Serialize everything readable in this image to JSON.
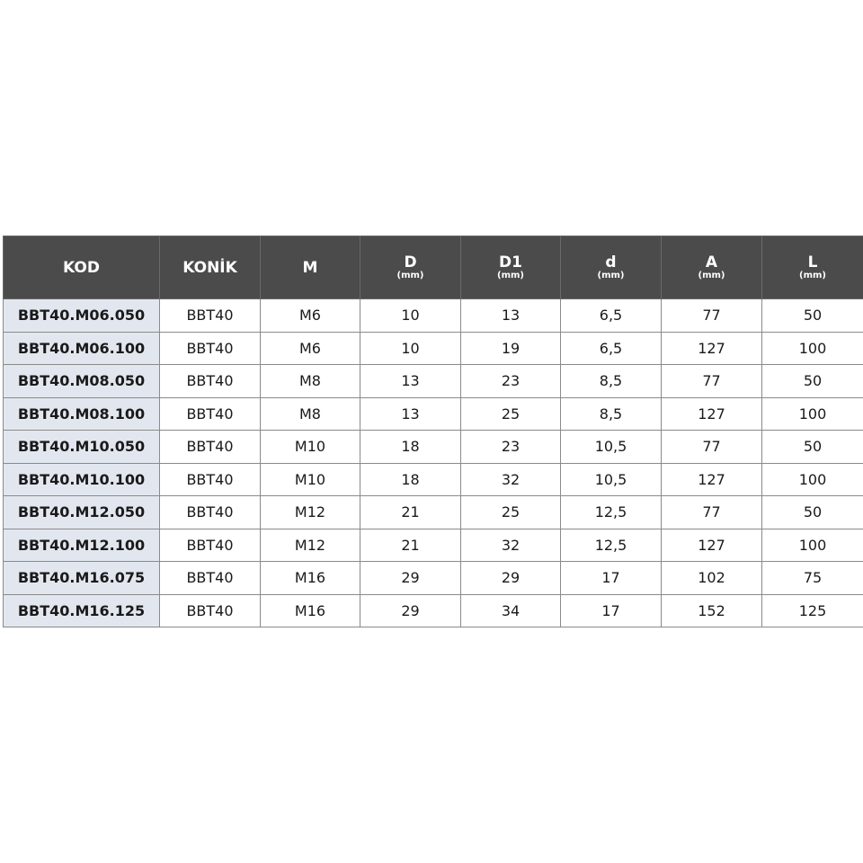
{
  "table": {
    "headers": [
      {
        "label": "KOD",
        "unit": ""
      },
      {
        "label": "KONİK",
        "unit": ""
      },
      {
        "label": "M",
        "unit": ""
      },
      {
        "label": "D",
        "unit": "(mm)"
      },
      {
        "label": "D1",
        "unit": "(mm)"
      },
      {
        "label": "d",
        "unit": "(mm)"
      },
      {
        "label": "A",
        "unit": "(mm)"
      },
      {
        "label": "L",
        "unit": "(mm)"
      }
    ],
    "rows": [
      [
        "BBT40.M06.050",
        "BBT40",
        "M6",
        "10",
        "13",
        "6,5",
        "77",
        "50"
      ],
      [
        "BBT40.M06.100",
        "BBT40",
        "M6",
        "10",
        "19",
        "6,5",
        "127",
        "100"
      ],
      [
        "BBT40.M08.050",
        "BBT40",
        "M8",
        "13",
        "23",
        "8,5",
        "77",
        "50"
      ],
      [
        "BBT40.M08.100",
        "BBT40",
        "M8",
        "13",
        "25",
        "8,5",
        "127",
        "100"
      ],
      [
        "BBT40.M10.050",
        "BBT40",
        "M10",
        "18",
        "23",
        "10,5",
        "77",
        "50"
      ],
      [
        "BBT40.M10.100",
        "BBT40",
        "M10",
        "18",
        "32",
        "10,5",
        "127",
        "100"
      ],
      [
        "BBT40.M12.050",
        "BBT40",
        "M12",
        "21",
        "25",
        "12,5",
        "77",
        "50"
      ],
      [
        "BBT40.M12.100",
        "BBT40",
        "M12",
        "21",
        "32",
        "12,5",
        "127",
        "100"
      ],
      [
        "BBT40.M16.075",
        "BBT40",
        "M16",
        "29",
        "29",
        "17",
        "102",
        "75"
      ],
      [
        "BBT40.M16.125",
        "BBT40",
        "M16",
        "29",
        "34",
        "17",
        "152",
        "125"
      ]
    ]
  }
}
